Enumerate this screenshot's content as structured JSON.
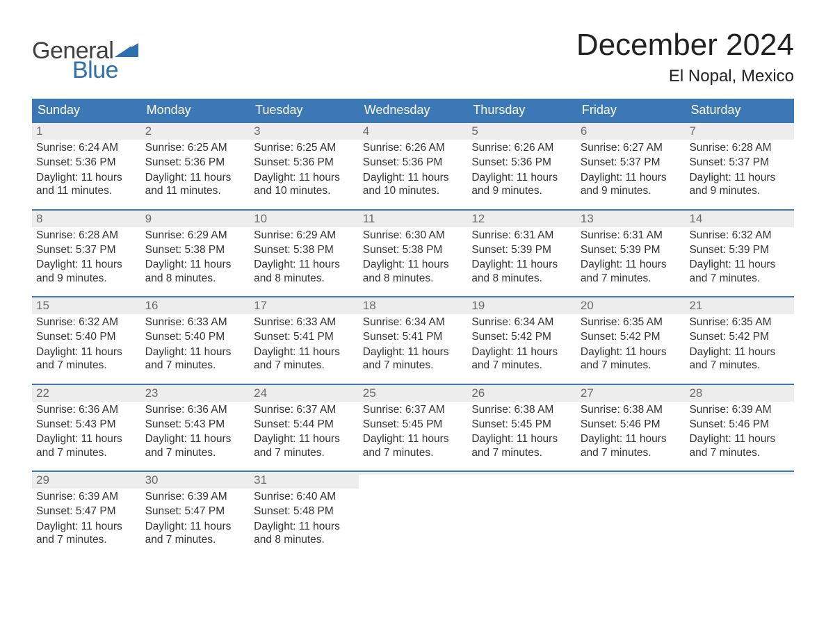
{
  "logo": {
    "general": "General",
    "blue": "Blue",
    "accent_color": "#2f6fad"
  },
  "title": "December 2024",
  "subtitle": "El Nopal, Mexico",
  "colors": {
    "header_bg": "#3b78b5",
    "header_text": "#ffffff",
    "daynum_bg": "#ededed",
    "daynum_text": "#6b6b6b",
    "body_text": "#333333",
    "week_border": "#3b78b5",
    "page_bg": "#ffffff"
  },
  "day_headers": [
    "Sunday",
    "Monday",
    "Tuesday",
    "Wednesday",
    "Thursday",
    "Friday",
    "Saturday"
  ],
  "weeks": [
    [
      {
        "n": "1",
        "sunrise": "Sunrise: 6:24 AM",
        "sunset": "Sunset: 5:36 PM",
        "daylight": "Daylight: 11 hours and 11 minutes."
      },
      {
        "n": "2",
        "sunrise": "Sunrise: 6:25 AM",
        "sunset": "Sunset: 5:36 PM",
        "daylight": "Daylight: 11 hours and 11 minutes."
      },
      {
        "n": "3",
        "sunrise": "Sunrise: 6:25 AM",
        "sunset": "Sunset: 5:36 PM",
        "daylight": "Daylight: 11 hours and 10 minutes."
      },
      {
        "n": "4",
        "sunrise": "Sunrise: 6:26 AM",
        "sunset": "Sunset: 5:36 PM",
        "daylight": "Daylight: 11 hours and 10 minutes."
      },
      {
        "n": "5",
        "sunrise": "Sunrise: 6:26 AM",
        "sunset": "Sunset: 5:36 PM",
        "daylight": "Daylight: 11 hours and 9 minutes."
      },
      {
        "n": "6",
        "sunrise": "Sunrise: 6:27 AM",
        "sunset": "Sunset: 5:37 PM",
        "daylight": "Daylight: 11 hours and 9 minutes."
      },
      {
        "n": "7",
        "sunrise": "Sunrise: 6:28 AM",
        "sunset": "Sunset: 5:37 PM",
        "daylight": "Daylight: 11 hours and 9 minutes."
      }
    ],
    [
      {
        "n": "8",
        "sunrise": "Sunrise: 6:28 AM",
        "sunset": "Sunset: 5:37 PM",
        "daylight": "Daylight: 11 hours and 9 minutes."
      },
      {
        "n": "9",
        "sunrise": "Sunrise: 6:29 AM",
        "sunset": "Sunset: 5:38 PM",
        "daylight": "Daylight: 11 hours and 8 minutes."
      },
      {
        "n": "10",
        "sunrise": "Sunrise: 6:29 AM",
        "sunset": "Sunset: 5:38 PM",
        "daylight": "Daylight: 11 hours and 8 minutes."
      },
      {
        "n": "11",
        "sunrise": "Sunrise: 6:30 AM",
        "sunset": "Sunset: 5:38 PM",
        "daylight": "Daylight: 11 hours and 8 minutes."
      },
      {
        "n": "12",
        "sunrise": "Sunrise: 6:31 AM",
        "sunset": "Sunset: 5:39 PM",
        "daylight": "Daylight: 11 hours and 8 minutes."
      },
      {
        "n": "13",
        "sunrise": "Sunrise: 6:31 AM",
        "sunset": "Sunset: 5:39 PM",
        "daylight": "Daylight: 11 hours and 7 minutes."
      },
      {
        "n": "14",
        "sunrise": "Sunrise: 6:32 AM",
        "sunset": "Sunset: 5:39 PM",
        "daylight": "Daylight: 11 hours and 7 minutes."
      }
    ],
    [
      {
        "n": "15",
        "sunrise": "Sunrise: 6:32 AM",
        "sunset": "Sunset: 5:40 PM",
        "daylight": "Daylight: 11 hours and 7 minutes."
      },
      {
        "n": "16",
        "sunrise": "Sunrise: 6:33 AM",
        "sunset": "Sunset: 5:40 PM",
        "daylight": "Daylight: 11 hours and 7 minutes."
      },
      {
        "n": "17",
        "sunrise": "Sunrise: 6:33 AM",
        "sunset": "Sunset: 5:41 PM",
        "daylight": "Daylight: 11 hours and 7 minutes."
      },
      {
        "n": "18",
        "sunrise": "Sunrise: 6:34 AM",
        "sunset": "Sunset: 5:41 PM",
        "daylight": "Daylight: 11 hours and 7 minutes."
      },
      {
        "n": "19",
        "sunrise": "Sunrise: 6:34 AM",
        "sunset": "Sunset: 5:42 PM",
        "daylight": "Daylight: 11 hours and 7 minutes."
      },
      {
        "n": "20",
        "sunrise": "Sunrise: 6:35 AM",
        "sunset": "Sunset: 5:42 PM",
        "daylight": "Daylight: 11 hours and 7 minutes."
      },
      {
        "n": "21",
        "sunrise": "Sunrise: 6:35 AM",
        "sunset": "Sunset: 5:42 PM",
        "daylight": "Daylight: 11 hours and 7 minutes."
      }
    ],
    [
      {
        "n": "22",
        "sunrise": "Sunrise: 6:36 AM",
        "sunset": "Sunset: 5:43 PM",
        "daylight": "Daylight: 11 hours and 7 minutes."
      },
      {
        "n": "23",
        "sunrise": "Sunrise: 6:36 AM",
        "sunset": "Sunset: 5:43 PM",
        "daylight": "Daylight: 11 hours and 7 minutes."
      },
      {
        "n": "24",
        "sunrise": "Sunrise: 6:37 AM",
        "sunset": "Sunset: 5:44 PM",
        "daylight": "Daylight: 11 hours and 7 minutes."
      },
      {
        "n": "25",
        "sunrise": "Sunrise: 6:37 AM",
        "sunset": "Sunset: 5:45 PM",
        "daylight": "Daylight: 11 hours and 7 minutes."
      },
      {
        "n": "26",
        "sunrise": "Sunrise: 6:38 AM",
        "sunset": "Sunset: 5:45 PM",
        "daylight": "Daylight: 11 hours and 7 minutes."
      },
      {
        "n": "27",
        "sunrise": "Sunrise: 6:38 AM",
        "sunset": "Sunset: 5:46 PM",
        "daylight": "Daylight: 11 hours and 7 minutes."
      },
      {
        "n": "28",
        "sunrise": "Sunrise: 6:39 AM",
        "sunset": "Sunset: 5:46 PM",
        "daylight": "Daylight: 11 hours and 7 minutes."
      }
    ],
    [
      {
        "n": "29",
        "sunrise": "Sunrise: 6:39 AM",
        "sunset": "Sunset: 5:47 PM",
        "daylight": "Daylight: 11 hours and 7 minutes."
      },
      {
        "n": "30",
        "sunrise": "Sunrise: 6:39 AM",
        "sunset": "Sunset: 5:47 PM",
        "daylight": "Daylight: 11 hours and 7 minutes."
      },
      {
        "n": "31",
        "sunrise": "Sunrise: 6:40 AM",
        "sunset": "Sunset: 5:48 PM",
        "daylight": "Daylight: 11 hours and 8 minutes."
      },
      {
        "empty": true
      },
      {
        "empty": true
      },
      {
        "empty": true
      },
      {
        "empty": true
      }
    ]
  ]
}
